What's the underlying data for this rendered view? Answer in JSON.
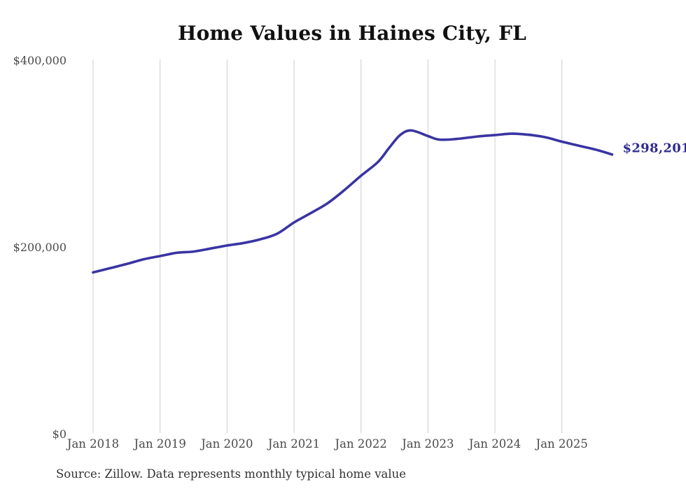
{
  "chart": {
    "title": "Home Values in Haines City, FL",
    "end_label": "$298,201",
    "source": "Source: Zillow. Data represents monthly typical home value",
    "colors": {
      "line": "#3a34a3",
      "end_label": "#2e2a8f",
      "gridline": "#cccccc",
      "axis_text": "#4a4a4a",
      "title_text": "#111111",
      "source_text": "#333333"
    }
  },
  "chart_data": {
    "type": "line",
    "title": "Home Values in Haines City, FL",
    "ylabel": "",
    "xlabel": "",
    "ylim": [
      0,
      400000
    ],
    "grid": "vertical-only",
    "legend": false,
    "series_name": "Typical home value (monthly, Zillow)",
    "x": [
      "2018-01",
      "2018-04",
      "2018-07",
      "2018-10",
      "2019-01",
      "2019-04",
      "2019-07",
      "2019-10",
      "2020-01",
      "2020-04",
      "2020-07",
      "2020-10",
      "2021-01",
      "2021-04",
      "2021-07",
      "2021-10",
      "2022-01",
      "2022-04",
      "2022-06",
      "2022-08",
      "2022-10",
      "2023-01",
      "2023-03",
      "2023-06",
      "2023-10",
      "2024-01",
      "2024-04",
      "2024-07",
      "2024-10",
      "2025-01",
      "2025-04",
      "2025-07",
      "2025-10"
    ],
    "month_index": [
      0,
      3,
      6,
      9,
      12,
      15,
      18,
      21,
      24,
      27,
      30,
      33,
      36,
      39,
      42,
      45,
      48,
      51,
      53,
      55,
      57,
      60,
      62,
      65,
      69,
      72,
      75,
      78,
      81,
      84,
      87,
      90,
      93
    ],
    "values": [
      172000,
      176500,
      181000,
      186000,
      189500,
      193000,
      194300,
      197500,
      200800,
      203500,
      207500,
      213500,
      225500,
      235500,
      246000,
      260000,
      275500,
      290000,
      305000,
      319000,
      324000,
      318000,
      314200,
      314800,
      317600,
      319000,
      320500,
      319400,
      316800,
      312000,
      307700,
      303500,
      298201
    ],
    "final_value": 298201,
    "annotation": {
      "text": "$298,201",
      "value": 298201,
      "position": "line-end"
    },
    "y_ticks": [
      {
        "label": "$400,000",
        "value": 400000
      },
      {
        "label": "$200,000",
        "value": 200000
      },
      {
        "label": "$0",
        "value": 0
      }
    ],
    "x_ticks": [
      "Jan 2018",
      "Jan 2019",
      "Jan 2020",
      "Jan 2021",
      "Jan 2022",
      "Jan 2023",
      "Jan 2024",
      "Jan 2025"
    ],
    "x_tick_month_index": [
      0,
      12,
      24,
      36,
      48,
      60,
      72,
      84
    ]
  }
}
